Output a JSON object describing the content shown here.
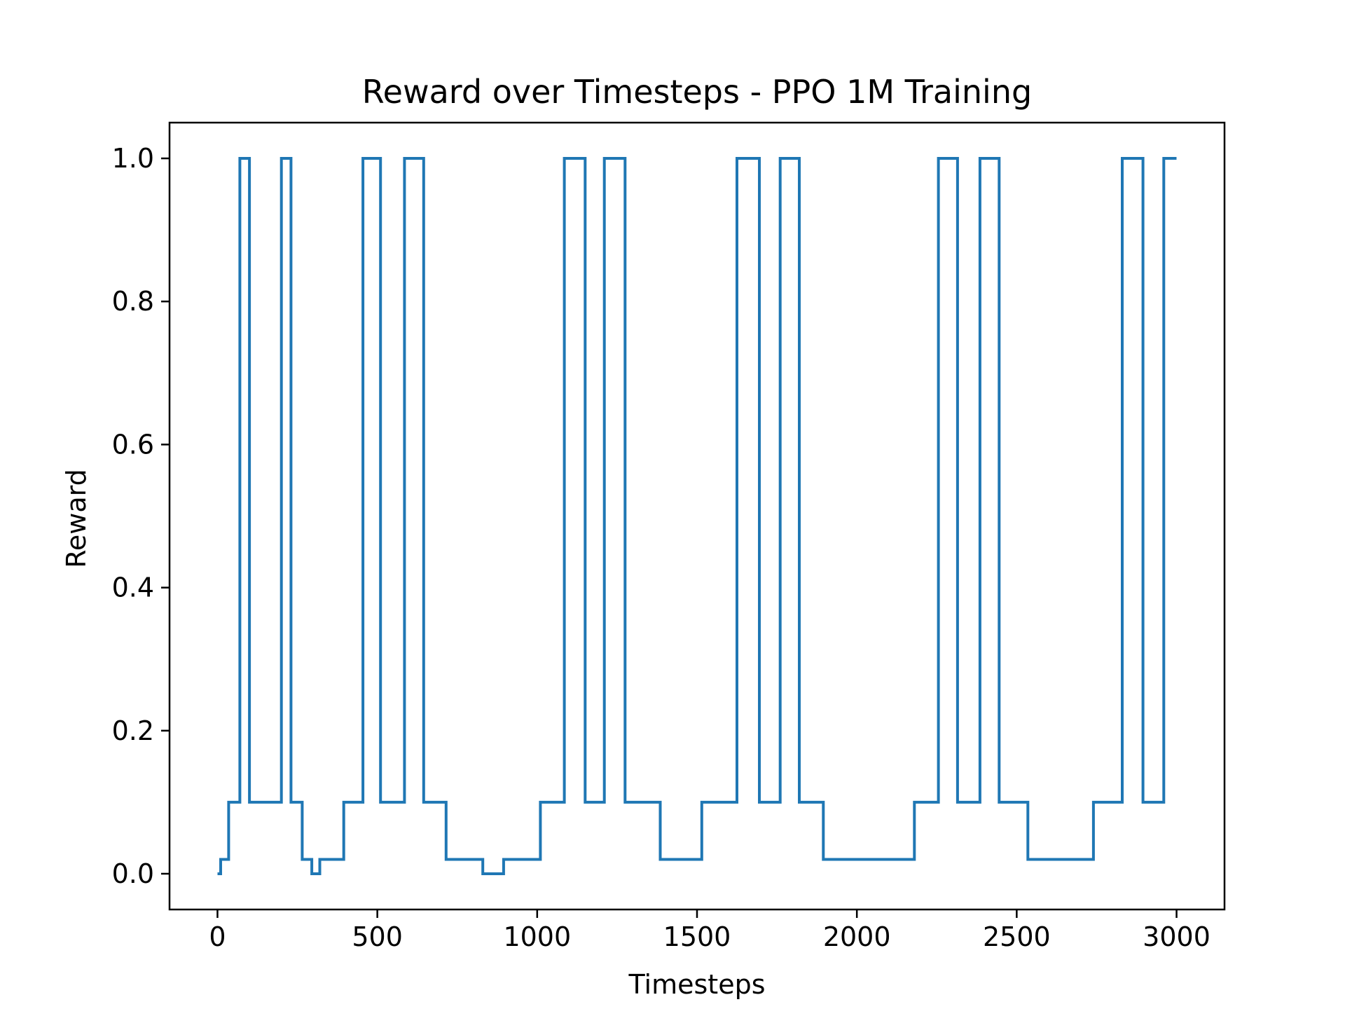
{
  "chart_data": {
    "type": "line",
    "title": "Reward over Timesteps - PPO 1M Training",
    "xlabel": "Timesteps",
    "ylabel": "Reward",
    "xlim": [
      -150,
      3150
    ],
    "ylim": [
      -0.05,
      1.05
    ],
    "x_ticks": [
      0,
      500,
      1000,
      1500,
      2000,
      2500,
      3000
    ],
    "x_tick_labels": [
      "0",
      "500",
      "1000",
      "1500",
      "2000",
      "2500",
      "3000"
    ],
    "y_ticks": [
      0.0,
      0.2,
      0.4,
      0.6,
      0.8,
      1.0
    ],
    "y_tick_labels": [
      "0.0",
      "0.2",
      "0.4",
      "0.6",
      "0.8",
      "1.0"
    ],
    "grid": false,
    "line_style": "step",
    "series": [
      {
        "color": "#1f77b4",
        "points": [
          [
            0,
            0
          ],
          [
            10,
            0
          ],
          [
            10,
            0.02
          ],
          [
            35,
            0.02
          ],
          [
            35,
            0.1
          ],
          [
            70,
            0.1
          ],
          [
            70,
            1.0
          ],
          [
            100,
            1.0
          ],
          [
            100,
            0.1
          ],
          [
            200,
            0.1
          ],
          [
            200,
            1.0
          ],
          [
            230,
            1.0
          ],
          [
            230,
            0.1
          ],
          [
            265,
            0.1
          ],
          [
            265,
            0.02
          ],
          [
            295,
            0.02
          ],
          [
            295,
            0
          ],
          [
            320,
            0
          ],
          [
            320,
            0.02
          ],
          [
            395,
            0.02
          ],
          [
            395,
            0.1
          ],
          [
            455,
            0.1
          ],
          [
            455,
            1.0
          ],
          [
            510,
            1.0
          ],
          [
            510,
            0.1
          ],
          [
            585,
            0.1
          ],
          [
            585,
            1.0
          ],
          [
            645,
            1.0
          ],
          [
            645,
            0.1
          ],
          [
            715,
            0.1
          ],
          [
            715,
            0.02
          ],
          [
            830,
            0.02
          ],
          [
            830,
            0
          ],
          [
            895,
            0
          ],
          [
            895,
            0.02
          ],
          [
            1010,
            0.02
          ],
          [
            1010,
            0.1
          ],
          [
            1085,
            0.1
          ],
          [
            1085,
            1.0
          ],
          [
            1150,
            1.0
          ],
          [
            1150,
            0.1
          ],
          [
            1210,
            0.1
          ],
          [
            1210,
            1.0
          ],
          [
            1275,
            1.0
          ],
          [
            1275,
            0.1
          ],
          [
            1385,
            0.1
          ],
          [
            1385,
            0.02
          ],
          [
            1515,
            0.02
          ],
          [
            1515,
            0.1
          ],
          [
            1625,
            0.1
          ],
          [
            1625,
            1.0
          ],
          [
            1695,
            1.0
          ],
          [
            1695,
            0.1
          ],
          [
            1760,
            0.1
          ],
          [
            1760,
            1.0
          ],
          [
            1820,
            1.0
          ],
          [
            1820,
            0.1
          ],
          [
            1895,
            0.1
          ],
          [
            1895,
            0.02
          ],
          [
            2180,
            0.02
          ],
          [
            2180,
            0.1
          ],
          [
            2255,
            0.1
          ],
          [
            2255,
            1.0
          ],
          [
            2315,
            1.0
          ],
          [
            2315,
            0.1
          ],
          [
            2385,
            0.1
          ],
          [
            2385,
            1.0
          ],
          [
            2445,
            1.0
          ],
          [
            2445,
            0.1
          ],
          [
            2535,
            0.1
          ],
          [
            2535,
            0.02
          ],
          [
            2740,
            0.02
          ],
          [
            2740,
            0.1
          ],
          [
            2830,
            0.1
          ],
          [
            2830,
            1.0
          ],
          [
            2895,
            1.0
          ],
          [
            2895,
            0.1
          ],
          [
            2960,
            0.1
          ],
          [
            2960,
            1.0
          ],
          [
            3000,
            1.0
          ]
        ]
      }
    ]
  }
}
